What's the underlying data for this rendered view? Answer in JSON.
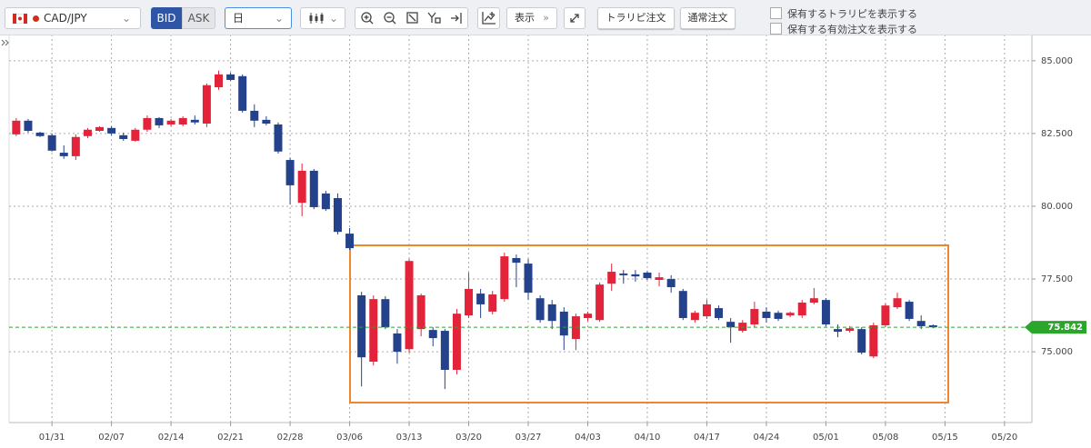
{
  "toolbar": {
    "pair": "CAD/JPY",
    "bid": "BID",
    "ask": "ASK",
    "period": "日",
    "display": "表示",
    "trarip_order": "トラリピ注文",
    "normal_order": "通常注文",
    "show_trarip": "保有するトラリピを表示する",
    "show_orders": "保有する有効注文を表示する"
  },
  "chart_data": {
    "type": "candlestick",
    "open": [
      82.47,
      82.94,
      82.53,
      82.44,
      81.84,
      81.72,
      82.41,
      82.59,
      82.69,
      82.44,
      82.25,
      82.63,
      83.03,
      82.81,
      82.81,
      82.97,
      82.84,
      84.09,
      84.53,
      84.47,
      83.28,
      82.97,
      82.81,
      81.59,
      80.12,
      81.22,
      80.44,
      80.28,
      79.06,
      76.94,
      74.66,
      76.81,
      75.63,
      75.09,
      75.78,
      75.75,
      75.72,
      74.38,
      76.25,
      77.0,
      76.38,
      76.81,
      78.22,
      78.03,
      76.84,
      76.63,
      76.38,
      75.44,
      76.16,
      76.09,
      77.34,
      77.69,
      77.66,
      77.72,
      77.47,
      77.5,
      77.09,
      76.09,
      76.22,
      76.5,
      76.03,
      75.72,
      75.94,
      76.38,
      76.34,
      76.25,
      76.25,
      76.69,
      76.78,
      75.78,
      75.72,
      75.78,
      74.84,
      75.91,
      76.53,
      76.72,
      76.06,
      75.91
    ],
    "high": [
      83.03,
      83.0,
      82.56,
      82.5,
      82.09,
      82.47,
      82.69,
      82.75,
      82.75,
      82.53,
      82.69,
      83.12,
      83.06,
      83.0,
      83.09,
      83.12,
      84.22,
      84.66,
      84.59,
      84.53,
      83.5,
      83.09,
      82.88,
      81.66,
      81.47,
      81.28,
      80.53,
      80.44,
      79.25,
      77.06,
      76.94,
      76.91,
      75.78,
      78.19,
      77.0,
      75.84,
      75.78,
      76.47,
      77.72,
      77.16,
      77.09,
      78.41,
      78.34,
      78.19,
      76.94,
      76.78,
      76.53,
      76.31,
      76.38,
      77.38,
      78.03,
      77.81,
      77.81,
      77.78,
      77.72,
      77.63,
      77.16,
      76.41,
      76.78,
      76.59,
      76.16,
      76.09,
      76.72,
      76.53,
      76.41,
      76.38,
      76.78,
      77.19,
      76.84,
      75.94,
      75.88,
      75.84,
      76.0,
      76.66,
      77.03,
      76.78,
      76.25,
      75.94
    ],
    "low": [
      82.41,
      82.53,
      82.38,
      81.88,
      81.63,
      81.59,
      82.34,
      82.56,
      82.44,
      82.25,
      82.22,
      82.56,
      82.69,
      82.75,
      82.75,
      82.81,
      82.72,
      84.0,
      84.31,
      83.22,
      82.72,
      82.78,
      81.81,
      80.06,
      79.66,
      79.9,
      79.84,
      79.03,
      78.5,
      73.81,
      74.53,
      75.78,
      74.59,
      74.97,
      75.53,
      75.19,
      73.72,
      74.22,
      76.16,
      76.16,
      76.28,
      76.72,
      77.22,
      76.78,
      76.0,
      75.78,
      75.06,
      75.06,
      76.06,
      76.03,
      77.09,
      77.34,
      77.41,
      77.47,
      77.25,
      77.03,
      76.09,
      76.0,
      76.13,
      76.09,
      75.31,
      75.66,
      75.84,
      76.0,
      76.06,
      76.19,
      76.16,
      76.63,
      75.88,
      75.5,
      75.66,
      74.91,
      74.78,
      75.84,
      76.47,
      76.06,
      75.78,
      75.81
    ],
    "close": [
      82.94,
      82.59,
      82.41,
      81.91,
      81.72,
      82.38,
      82.63,
      82.72,
      82.5,
      82.31,
      82.63,
      83.03,
      82.78,
      82.94,
      83.03,
      82.88,
      84.16,
      84.53,
      84.34,
      83.28,
      82.94,
      82.84,
      81.88,
      80.72,
      81.22,
      79.97,
      79.9,
      79.12,
      78.56,
      74.81,
      76.81,
      75.84,
      75.0,
      78.12,
      76.94,
      75.47,
      74.38,
      76.31,
      77.16,
      76.63,
      76.97,
      78.28,
      78.06,
      77.03,
      76.09,
      76.06,
      75.56,
      76.22,
      76.31,
      77.31,
      77.75,
      77.63,
      77.59,
      77.53,
      77.56,
      77.22,
      76.16,
      76.34,
      76.63,
      76.16,
      75.84,
      76.0,
      76.47,
      76.16,
      76.13,
      76.34,
      76.69,
      76.84,
      75.94,
      75.69,
      75.81,
      74.97,
      75.91,
      76.59,
      76.84,
      76.13,
      75.88,
      75.842
    ],
    "up_color": "#e3233a",
    "down_color": "#24428c",
    "ylim": [
      72.6,
      85.9
    ],
    "yticks": [
      {
        "value": 75,
        "label": "75.000"
      },
      {
        "value": 77.5,
        "label": "77.500"
      },
      {
        "value": 80,
        "label": "80.000"
      },
      {
        "value": 82.5,
        "label": "82.500"
      },
      {
        "value": 85,
        "label": "85.000"
      }
    ],
    "xlim": [
      -0.6,
      85.3
    ],
    "xticks": [
      {
        "value": 3,
        "label": "01/31"
      },
      {
        "value": 8,
        "label": "02/07"
      },
      {
        "value": 13,
        "label": "02/14"
      },
      {
        "value": 18,
        "label": "02/21"
      },
      {
        "value": 23,
        "label": "02/28"
      },
      {
        "value": 28,
        "label": "03/06"
      },
      {
        "value": 33,
        "label": "03/13"
      },
      {
        "value": 38,
        "label": "03/20"
      },
      {
        "value": 43,
        "label": "03/27"
      },
      {
        "value": 48,
        "label": "04/03"
      },
      {
        "value": 53,
        "label": "04/10"
      },
      {
        "value": 58,
        "label": "04/17"
      },
      {
        "value": 63,
        "label": "04/24"
      },
      {
        "value": 68,
        "label": "05/01"
      },
      {
        "value": 73,
        "label": "05/08"
      },
      {
        "value": 78,
        "label": "05/15"
      },
      {
        "value": 83,
        "label": "05/20"
      }
    ],
    "grid": true,
    "last_price": 75.842,
    "last_price_color": "#2ba52b"
  }
}
